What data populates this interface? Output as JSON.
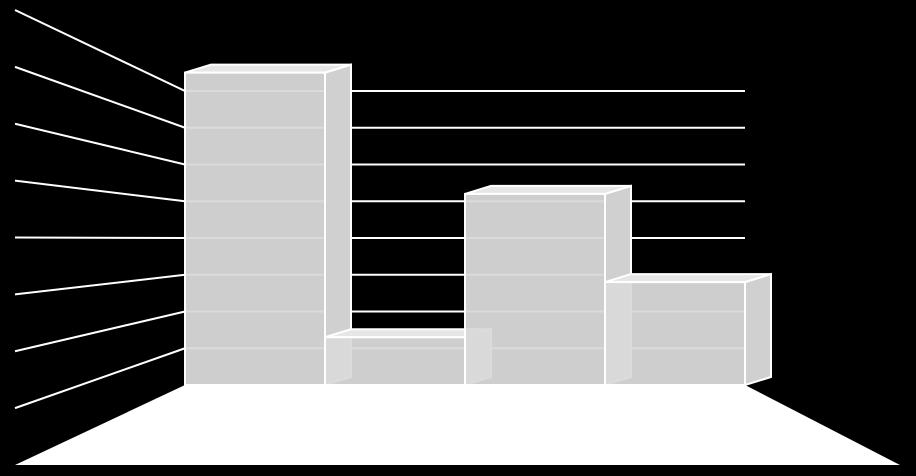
{
  "chart_data": {
    "type": "bar3d",
    "categories": [
      null,
      null,
      null,
      null
    ],
    "values": [
      8.5,
      1.3,
      5.2,
      2.8
    ],
    "color": "#d9d9d9",
    "ylim": [
      0,
      8
    ],
    "yticks": [
      0,
      1,
      2,
      3,
      4,
      5,
      6,
      7,
      8
    ],
    "grid": true
  }
}
